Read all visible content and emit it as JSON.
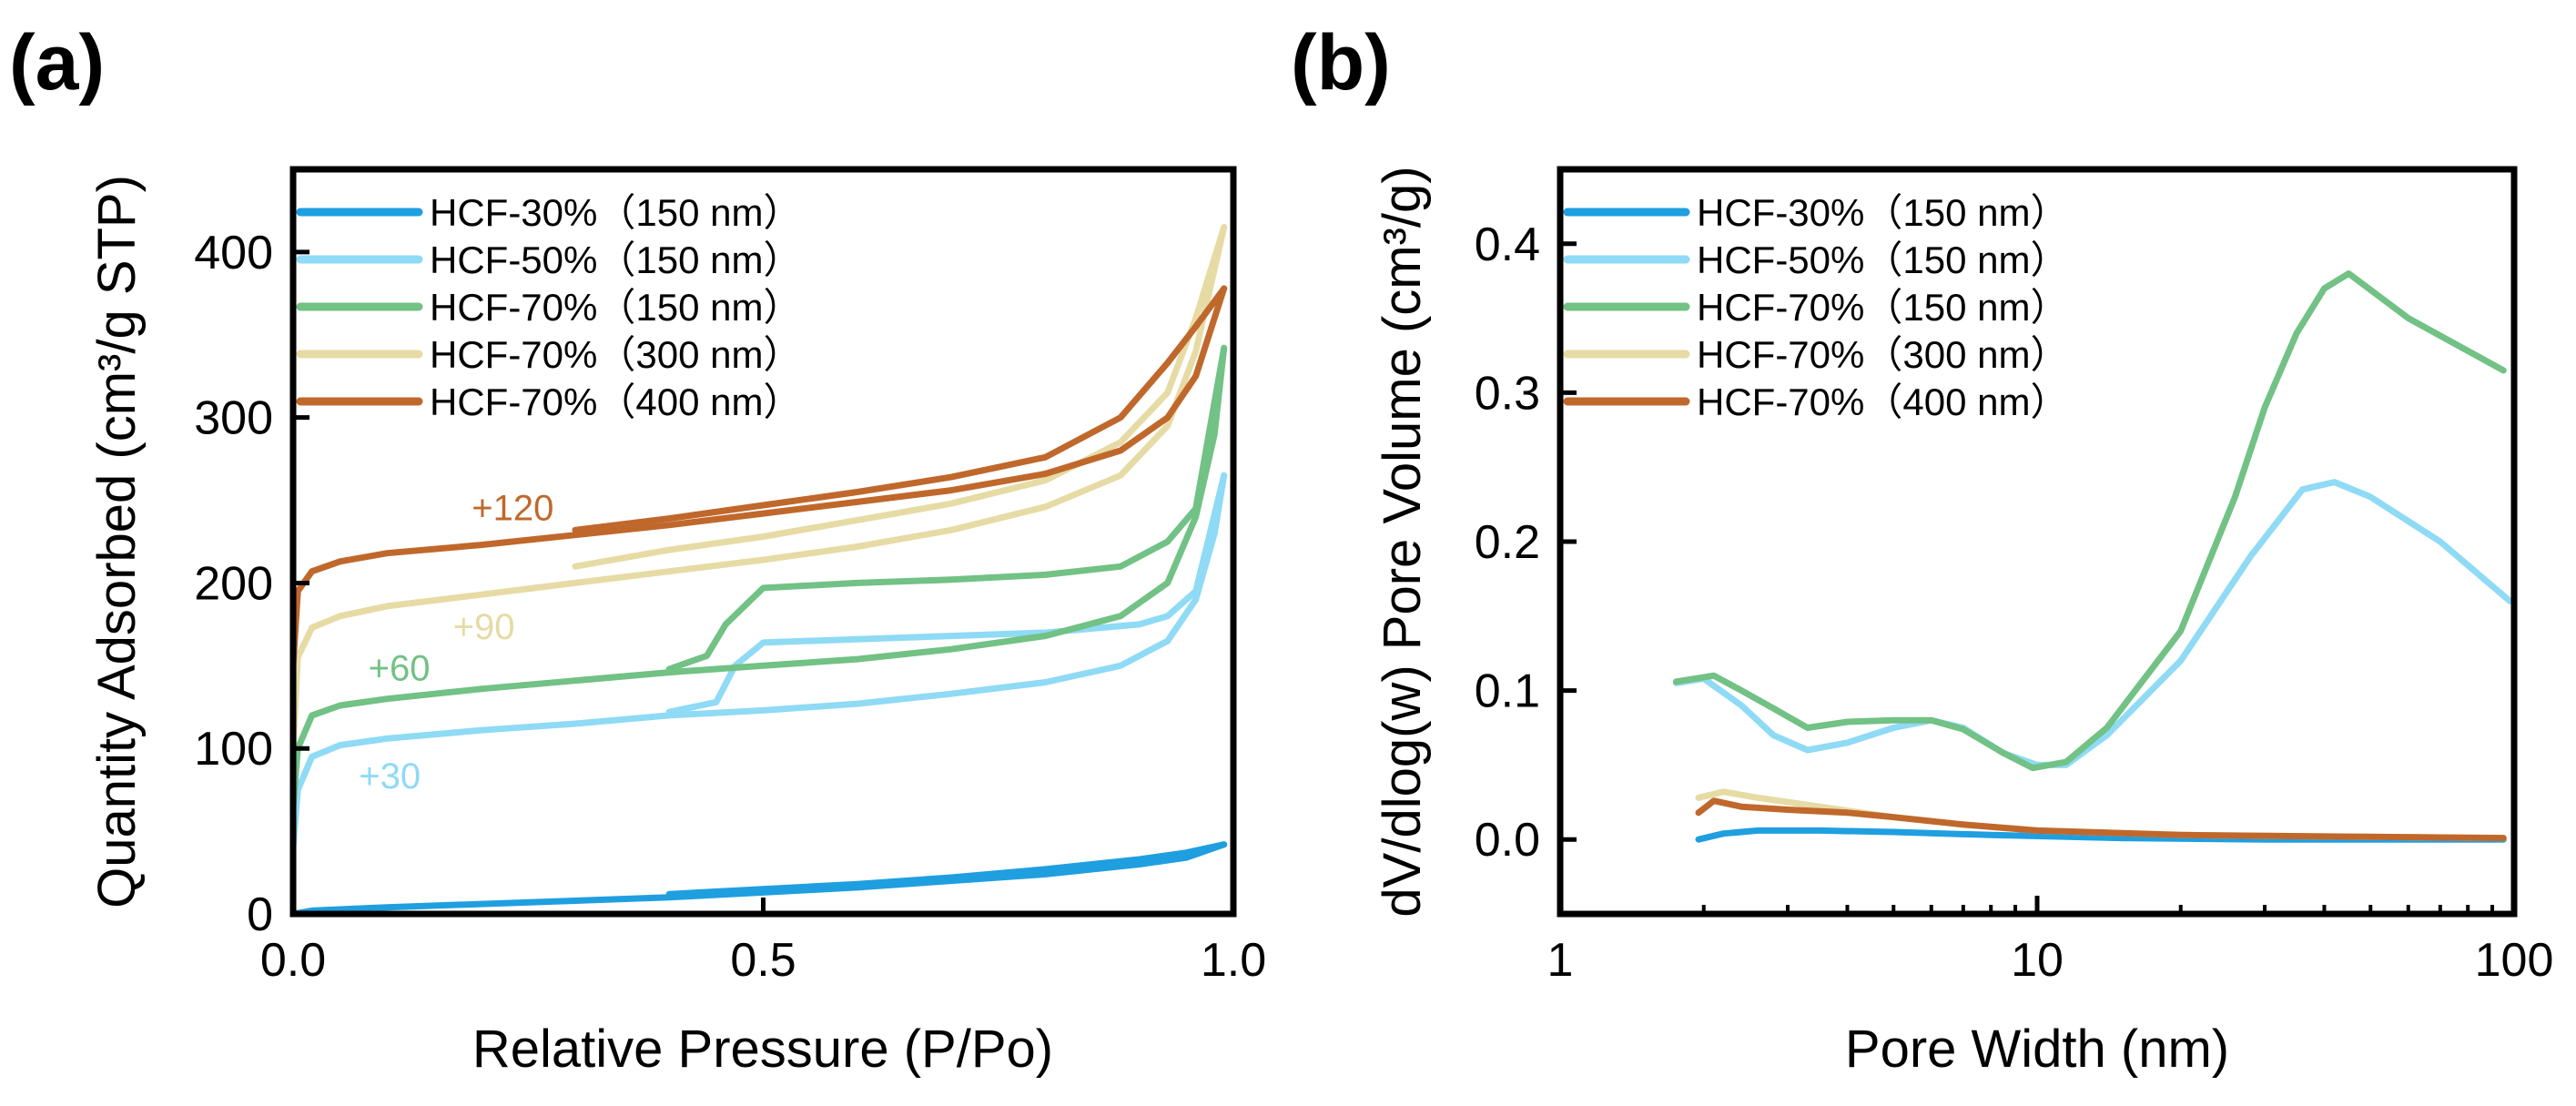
{
  "colors": {
    "HCF-30% (150 nm)": "#1f9fe0",
    "HCF-50% (150 nm)": "#8fdaf5",
    "HCF-70% (150 nm)": "#72c185",
    "HCF-70% (300 nm)": "#e6dba4",
    "HCF-70% (400 nm)": "#c0682c"
  },
  "chart_data": [
    {
      "panel": "(a)",
      "type": "line",
      "xlabel": "Relative Pressure (P/Po)",
      "ylabel": "Quantity Adsorbed (cm³/g STP)",
      "xlim": [
        0,
        1
      ],
      "ylim": [
        0,
        450
      ],
      "xticks": [
        "0.0",
        "0.5",
        "1.0"
      ],
      "yticks": [
        "0",
        "100",
        "200",
        "300",
        "400"
      ],
      "legend_location": "top-left",
      "legend": [
        "HCF-30%（150 nm）",
        "HCF-50%（150 nm）",
        "HCF-70%（150 nm）",
        "HCF-70%（300 nm）",
        "HCF-70%（400 nm）"
      ],
      "annotations": [
        {
          "text": "+120",
          "x": 0.19,
          "y": 238,
          "series": "HCF-70% (400 nm)"
        },
        {
          "text": "+90",
          "x": 0.17,
          "y": 166,
          "series": "HCF-70% (300 nm)"
        },
        {
          "text": "+60",
          "x": 0.08,
          "y": 141,
          "series": "HCF-70% (150 nm)"
        },
        {
          "text": "+30",
          "x": 0.07,
          "y": 76,
          "series": "HCF-50% (150 nm)"
        }
      ],
      "series": [
        {
          "name": "HCF-30% (150 nm)",
          "adsorption": [
            [
              0.0,
              0
            ],
            [
              0.02,
              2
            ],
            [
              0.1,
              4
            ],
            [
              0.2,
              6
            ],
            [
              0.3,
              8
            ],
            [
              0.4,
              10
            ],
            [
              0.5,
              13
            ],
            [
              0.6,
              16
            ],
            [
              0.7,
              20
            ],
            [
              0.8,
              24
            ],
            [
              0.9,
              30
            ],
            [
              0.95,
              34
            ],
            [
              0.99,
              42
            ]
          ],
          "desorption": [
            [
              0.99,
              42
            ],
            [
              0.95,
              37
            ],
            [
              0.9,
              33
            ],
            [
              0.8,
              27
            ],
            [
              0.7,
              22
            ],
            [
              0.6,
              18
            ],
            [
              0.5,
              15
            ],
            [
              0.4,
              12
            ]
          ]
        },
        {
          "name": "HCF-50% (150 nm)",
          "adsorption": [
            [
              0.0,
              40
            ],
            [
              0.005,
              75
            ],
            [
              0.02,
              95
            ],
            [
              0.05,
              102
            ],
            [
              0.1,
              106
            ],
            [
              0.2,
              111
            ],
            [
              0.3,
              115
            ],
            [
              0.4,
              120
            ],
            [
              0.5,
              123
            ],
            [
              0.6,
              127
            ],
            [
              0.7,
              133
            ],
            [
              0.8,
              140
            ],
            [
              0.88,
              150
            ],
            [
              0.93,
              165
            ],
            [
              0.96,
              190
            ],
            [
              0.98,
              230
            ],
            [
              0.99,
              265
            ]
          ],
          "desorption": [
            [
              0.99,
              265
            ],
            [
              0.96,
              195
            ],
            [
              0.93,
              180
            ],
            [
              0.9,
              175
            ],
            [
              0.8,
              170
            ],
            [
              0.7,
              168
            ],
            [
              0.6,
              166
            ],
            [
              0.5,
              164
            ],
            [
              0.47,
              150
            ],
            [
              0.45,
              128
            ],
            [
              0.4,
              122
            ]
          ]
        },
        {
          "name": "HCF-70% (150 nm)",
          "adsorption": [
            [
              0.0,
              65
            ],
            [
              0.005,
              100
            ],
            [
              0.02,
              120
            ],
            [
              0.05,
              126
            ],
            [
              0.1,
              130
            ],
            [
              0.2,
              136
            ],
            [
              0.3,
              141
            ],
            [
              0.4,
              146
            ],
            [
              0.5,
              150
            ],
            [
              0.6,
              154
            ],
            [
              0.7,
              160
            ],
            [
              0.8,
              168
            ],
            [
              0.88,
              180
            ],
            [
              0.93,
              200
            ],
            [
              0.96,
              240
            ],
            [
              0.98,
              290
            ],
            [
              0.99,
              342
            ]
          ],
          "desorption": [
            [
              0.99,
              342
            ],
            [
              0.96,
              245
            ],
            [
              0.93,
              225
            ],
            [
              0.88,
              210
            ],
            [
              0.8,
              205
            ],
            [
              0.7,
              202
            ],
            [
              0.6,
              200
            ],
            [
              0.5,
              197
            ],
            [
              0.46,
              175
            ],
            [
              0.44,
              156
            ],
            [
              0.4,
              148
            ]
          ]
        },
        {
          "name": "HCF-70% (300 nm)",
          "adsorption": [
            [
              0.0,
              100
            ],
            [
              0.005,
              155
            ],
            [
              0.02,
              173
            ],
            [
              0.05,
              180
            ],
            [
              0.1,
              186
            ],
            [
              0.2,
              193
            ],
            [
              0.3,
              200
            ],
            [
              0.4,
              207
            ],
            [
              0.5,
              214
            ],
            [
              0.6,
              222
            ],
            [
              0.7,
              232
            ],
            [
              0.8,
              246
            ],
            [
              0.88,
              265
            ],
            [
              0.93,
              295
            ],
            [
              0.96,
              340
            ],
            [
              0.99,
              415
            ]
          ],
          "desorption": [
            [
              0.99,
              415
            ],
            [
              0.96,
              360
            ],
            [
              0.93,
              315
            ],
            [
              0.88,
              285
            ],
            [
              0.8,
              262
            ],
            [
              0.7,
              248
            ],
            [
              0.6,
              238
            ],
            [
              0.5,
              228
            ],
            [
              0.4,
              220
            ],
            [
              0.3,
              210
            ]
          ]
        },
        {
          "name": "HCF-70% (400 nm)",
          "adsorption": [
            [
              0.0,
              150
            ],
            [
              0.005,
              195
            ],
            [
              0.02,
              207
            ],
            [
              0.05,
              213
            ],
            [
              0.1,
              218
            ],
            [
              0.2,
              223
            ],
            [
              0.3,
              229
            ],
            [
              0.4,
              235
            ],
            [
              0.5,
              242
            ],
            [
              0.6,
              249
            ],
            [
              0.7,
              256
            ],
            [
              0.8,
              266
            ],
            [
              0.88,
              280
            ],
            [
              0.93,
              300
            ],
            [
              0.96,
              325
            ],
            [
              0.99,
              378
            ]
          ],
          "desorption": [
            [
              0.99,
              378
            ],
            [
              0.96,
              355
            ],
            [
              0.93,
              333
            ],
            [
              0.88,
              300
            ],
            [
              0.8,
              276
            ],
            [
              0.7,
              264
            ],
            [
              0.6,
              255
            ],
            [
              0.5,
              247
            ],
            [
              0.4,
              239
            ],
            [
              0.3,
              232
            ]
          ]
        }
      ]
    },
    {
      "panel": "(b)",
      "type": "line",
      "xscale": "log",
      "xlabel": "Pore Width (nm)",
      "ylabel": "dV/dlog(w) Pore Volume (cm³/g)",
      "xlim": [
        1,
        100
      ],
      "ylim": [
        -0.05,
        0.45
      ],
      "xticks": [
        "1",
        "10",
        "100"
      ],
      "yticks": [
        "0.0",
        "0.1",
        "0.2",
        "0.3",
        "0.4"
      ],
      "legend_location": "top-left",
      "legend": [
        "HCF-30%（150 nm）",
        "HCF-50%（150 nm）",
        "HCF-70%（150 nm）",
        "HCF-70%（300 nm）",
        "HCF-70%（400 nm）"
      ],
      "series": [
        {
          "name": "HCF-30% (150 nm)",
          "points": [
            [
              1.95,
              0.0
            ],
            [
              2.2,
              0.004
            ],
            [
              2.6,
              0.006
            ],
            [
              3.5,
              0.006
            ],
            [
              5,
              0.005
            ],
            [
              8,
              0.003
            ],
            [
              15,
              0.001
            ],
            [
              30,
              0.0
            ],
            [
              60,
              0.0
            ],
            [
              95,
              0.0
            ]
          ]
        },
        {
          "name": "HCF-50% (150 nm)",
          "points": [
            [
              1.75,
              0.105
            ],
            [
              2.0,
              0.108
            ],
            [
              2.4,
              0.09
            ],
            [
              2.8,
              0.07
            ],
            [
              3.3,
              0.06
            ],
            [
              4.0,
              0.065
            ],
            [
              5.0,
              0.075
            ],
            [
              6.0,
              0.08
            ],
            [
              7.0,
              0.075
            ],
            [
              8.5,
              0.058
            ],
            [
              10,
              0.05
            ],
            [
              11.5,
              0.05
            ],
            [
              14,
              0.07
            ],
            [
              20,
              0.12
            ],
            [
              28,
              0.19
            ],
            [
              36,
              0.235
            ],
            [
              42,
              0.24
            ],
            [
              50,
              0.23
            ],
            [
              70,
              0.2
            ],
            [
              98,
              0.16
            ]
          ]
        },
        {
          "name": "HCF-70% (150 nm)",
          "points": [
            [
              1.75,
              0.106
            ],
            [
              2.1,
              0.11
            ],
            [
              2.4,
              0.1
            ],
            [
              2.8,
              0.088
            ],
            [
              3.3,
              0.075
            ],
            [
              4.0,
              0.079
            ],
            [
              5.0,
              0.08
            ],
            [
              6.0,
              0.08
            ],
            [
              7.0,
              0.074
            ],
            [
              8.5,
              0.058
            ],
            [
              9.8,
              0.048
            ],
            [
              11.5,
              0.052
            ],
            [
              14,
              0.075
            ],
            [
              20,
              0.14
            ],
            [
              26,
              0.23
            ],
            [
              30,
              0.29
            ],
            [
              35,
              0.34
            ],
            [
              40,
              0.37
            ],
            [
              45,
              0.38
            ],
            [
              60,
              0.35
            ],
            [
              95,
              0.315
            ]
          ]
        },
        {
          "name": "HCF-70% (300 nm)",
          "points": [
            [
              1.95,
              0.028
            ],
            [
              2.2,
              0.032
            ],
            [
              2.6,
              0.028
            ],
            [
              3.5,
              0.022
            ],
            [
              5,
              0.015
            ],
            [
              7,
              0.01
            ],
            [
              10,
              0.006
            ],
            [
              20,
              0.003
            ],
            [
              40,
              0.002
            ],
            [
              95,
              0.001
            ]
          ]
        },
        {
          "name": "HCF-70% (400 nm)",
          "points": [
            [
              1.95,
              0.018
            ],
            [
              2.1,
              0.026
            ],
            [
              2.4,
              0.022
            ],
            [
              3.0,
              0.02
            ],
            [
              4.0,
              0.018
            ],
            [
              5.0,
              0.015
            ],
            [
              7,
              0.01
            ],
            [
              10,
              0.006
            ],
            [
              20,
              0.003
            ],
            [
              40,
              0.002
            ],
            [
              95,
              0.001
            ]
          ]
        }
      ]
    }
  ]
}
